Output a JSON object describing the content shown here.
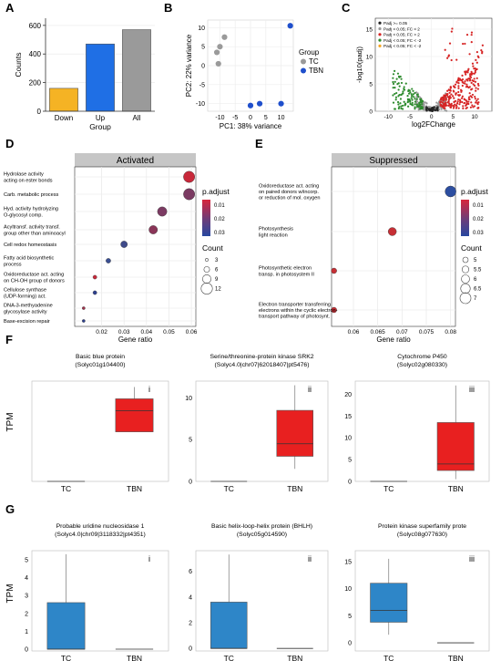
{
  "panel_letters": [
    "A",
    "B",
    "C",
    "D",
    "E",
    "F",
    "G"
  ],
  "chart_data": [
    {
      "id": "A",
      "type": "bar",
      "categories": [
        "Down",
        "Up",
        "All"
      ],
      "values": [
        160,
        470,
        570
      ],
      "colors": [
        "#f5b324",
        "#1f6fe5",
        "#9a9a9a"
      ],
      "xlabel": "Group",
      "ylabel": "Counts",
      "ylim": [
        0,
        650
      ],
      "yticks": [
        0,
        200,
        400,
        600
      ]
    },
    {
      "id": "B",
      "type": "scatter",
      "xlabel": "PC1: 38% variance",
      "ylabel": "PC2: 22% variance",
      "xlim": [
        -14,
        14
      ],
      "ylim": [
        -12,
        12
      ],
      "xticks": [
        -10,
        -5,
        0,
        5,
        10
      ],
      "yticks": [
        -10,
        -5,
        0,
        5,
        10
      ],
      "legend_title": "Group",
      "series": [
        {
          "name": "TC",
          "color": "#9a9a9a",
          "points": [
            [
              -8.5,
              7.5
            ],
            [
              -10,
              5
            ],
            [
              -11,
              3.5
            ],
            [
              -10.5,
              0.5
            ]
          ]
        },
        {
          "name": "TBN",
          "color": "#1f4fcc",
          "points": [
            [
              13,
              10.5
            ],
            [
              0,
              -10.5
            ],
            [
              3,
              -10
            ],
            [
              10,
              -10
            ]
          ]
        }
      ]
    },
    {
      "id": "C",
      "type": "scatter",
      "xlabel": "log2FChange",
      "ylabel": "-log10(padj)",
      "xlim": [
        -13,
        14
      ],
      "ylim": [
        0,
        17
      ],
      "xticks": [
        -10,
        -5,
        0,
        5,
        10
      ],
      "yticks": [
        0,
        5,
        10,
        15
      ],
      "legend": [
        {
          "label": "Padj >= 0.05",
          "color": "#222222"
        },
        {
          "label": "Padj < 0.05; FC < 2",
          "color": "#9a9a9a"
        },
        {
          "label": "Padj < 0.05; FC > 2",
          "color": "#d62424"
        },
        {
          "label": "Padj < 0.05; FC < -2",
          "color": "#2e8b2e"
        },
        {
          "label": "Padj < 0.05; FC < -2",
          "color": "#f5a623"
        }
      ]
    },
    {
      "id": "D",
      "type": "scatter",
      "title": "Activated",
      "xlabel": "Gene ratio",
      "xlim": [
        0.008,
        0.062
      ],
      "xticks": [
        0.02,
        0.03,
        0.04,
        0.05,
        0.06
      ],
      "color_title": "p.adjust",
      "color_ticks": [
        0.01,
        0.02,
        0.03
      ],
      "size_title": "Count",
      "size_ticks": [
        3,
        6,
        9,
        12
      ],
      "terms": [
        {
          "label": [
            "Hydrolase activity",
            "acting on ester bonds"
          ],
          "x": 0.059,
          "count": 12,
          "color": "#c8283a"
        },
        {
          "label": [
            "Carb. metabolic process"
          ],
          "x": 0.059,
          "count": 12,
          "color": "#7b3a62"
        },
        {
          "label": [
            "Hyd. activity hydrolyzing",
            "O-glycosyl comp."
          ],
          "x": 0.047,
          "count": 10,
          "color": "#7b3a62"
        },
        {
          "label": [
            "Acyltransf. activity transf.",
            "group other than aminoacyl"
          ],
          "x": 0.043,
          "count": 9,
          "color": "#8a3558"
        },
        {
          "label": [
            "Cell redox homeostasis"
          ],
          "x": 0.03,
          "count": 7,
          "color": "#3f4a8a"
        },
        {
          "label": [
            "Fatty acid biosynthetic",
            "process"
          ],
          "x": 0.023,
          "count": 5,
          "color": "#3a4f93"
        },
        {
          "label": [
            "Oxidoreductase act. acting",
            "on CH-OH group of donors"
          ],
          "x": 0.017,
          "count": 4,
          "color": "#c8283a"
        },
        {
          "label": [
            "Cellulose synthase",
            "(UDP-forming) act."
          ],
          "x": 0.017,
          "count": 4,
          "color": "#2d3f8f"
        },
        {
          "label": [
            "DNA-3-methyadenine",
            "glycosylase activity"
          ],
          "x": 0.012,
          "count": 3,
          "color": "#a0304a"
        },
        {
          "label": [
            "Base-excision repair"
          ],
          "x": 0.012,
          "count": 3,
          "color": "#2c3e8c"
        }
      ]
    },
    {
      "id": "E",
      "type": "scatter",
      "title": "Suppressed",
      "xlabel": "Gene ratio",
      "xlim": [
        0.0555,
        0.081
      ],
      "xticks": [
        0.06,
        0.065,
        0.07,
        0.075,
        0.08
      ],
      "color_title": "p.adjust",
      "color_ticks": [
        0.01,
        0.02,
        0.03
      ],
      "size_title": "Count",
      "size_ticks": [
        5.0,
        5.5,
        6.0,
        6.5,
        7.0
      ],
      "terms": [
        {
          "label": [
            "Oxidoreductase act. acting",
            "on paired donors w/incorp.",
            "or reduction of mol. oxygen"
          ],
          "x": 0.08,
          "count": 7,
          "color": "#2c4ea0"
        },
        {
          "label": [
            "Photosynthesis",
            "light reaction"
          ],
          "x": 0.068,
          "count": 6,
          "color": "#c62f35"
        },
        {
          "label": [
            "Photosynthetic electron",
            "transp. in photosystem II"
          ],
          "x": 0.056,
          "count": 5,
          "color": "#c62f35"
        },
        {
          "label": [
            "Electron transporter transferring",
            "electrons within the cyclic electron-",
            "transport pathway of photosynt."
          ],
          "x": 0.056,
          "count": 5,
          "color": "#c62f35"
        }
      ]
    },
    {
      "id": "F",
      "type": "box",
      "ylabel": "TPM",
      "subplots": [
        {
          "roman": "i",
          "title": [
            "Basic blue protein",
            "(Solyc01g104400)"
          ],
          "ylim": [
            0,
            85
          ],
          "yticks": [],
          "color": "#e82020",
          "boxes": [
            {
              "category": "TC",
              "whislo": 0,
              "q1": 0,
              "med": 0,
              "q3": 0,
              "whishi": 0
            },
            {
              "category": "TBN",
              "whislo": 42,
              "q1": 42,
              "med": 60,
              "q3": 70,
              "whishi": 80
            }
          ]
        },
        {
          "roman": "ii",
          "title": [
            "Serine/threonine-protein kinase SRK2",
            "(Solyc4.0|chr07|62018407|pt5476)"
          ],
          "ylim": [
            0,
            12
          ],
          "yticks": [
            0,
            5,
            10
          ],
          "color": "#e82020",
          "boxes": [
            {
              "category": "TC",
              "whislo": 0,
              "q1": 0,
              "med": 0,
              "q3": 0,
              "whishi": 0
            },
            {
              "category": "TBN",
              "whislo": 1.5,
              "q1": 3,
              "med": 4.5,
              "q3": 8.5,
              "whishi": 11.5
            }
          ]
        },
        {
          "roman": "iii",
          "title": [
            "Cytochrome P450",
            "(Solyc02g080330)"
          ],
          "ylim": [
            0,
            23
          ],
          "yticks": [
            0,
            5,
            10,
            15,
            20
          ],
          "color": "#e82020",
          "boxes": [
            {
              "category": "TC",
              "whislo": 0,
              "q1": 0,
              "med": 0,
              "q3": 0,
              "whishi": 0
            },
            {
              "category": "TBN",
              "whislo": 0.5,
              "q1": 2.5,
              "med": 4,
              "q3": 13.5,
              "whishi": 22
            }
          ]
        }
      ]
    },
    {
      "id": "G",
      "type": "box",
      "ylabel": "TPM",
      "subplots": [
        {
          "roman": "i",
          "title": [
            "Probable uridine nucleosidase 1",
            "(Solyc4.0|chr09|3118332|pt4351)"
          ],
          "ylim": [
            -0.1,
            5.5
          ],
          "yticks": [
            0,
            1,
            2,
            3,
            4,
            5
          ],
          "color": "#2e86c8",
          "boxes": [
            {
              "category": "TC",
              "whislo": 0,
              "q1": 0,
              "med": 0,
              "q3": 2.6,
              "whishi": 5.3
            },
            {
              "category": "TBN",
              "whislo": 0,
              "q1": 0,
              "med": 0,
              "q3": 0,
              "whishi": 0
            }
          ]
        },
        {
          "roman": "ii",
          "title": [
            "Basic helix-loop-helix protein (BHLH)",
            "(Solyc05g014590)"
          ],
          "ylim": [
            -0.2,
            7.6
          ],
          "yticks": [
            0,
            2,
            4,
            6
          ],
          "color": "#2e86c8",
          "boxes": [
            {
              "category": "TC",
              "whislo": 0,
              "q1": 0,
              "med": 0,
              "q3": 3.6,
              "whishi": 7.3
            },
            {
              "category": "TBN",
              "whislo": 0,
              "q1": 0,
              "med": 0,
              "q3": 0,
              "whishi": 0
            }
          ]
        },
        {
          "roman": "iii",
          "title": [
            "Protein kinase superfamily prote",
            "(Solyc08g077630)"
          ],
          "ylim": [
            -1.5,
            17
          ],
          "yticks": [
            0,
            5,
            10,
            15
          ],
          "color": "#2e86c8",
          "boxes": [
            {
              "category": "TC",
              "whislo": 1.5,
              "q1": 3.8,
              "med": 6,
              "q3": 11,
              "whishi": 15.5
            },
            {
              "category": "TBN",
              "whislo": 0,
              "q1": 0,
              "med": 0,
              "q3": 0,
              "whishi": 0
            }
          ]
        }
      ]
    }
  ]
}
